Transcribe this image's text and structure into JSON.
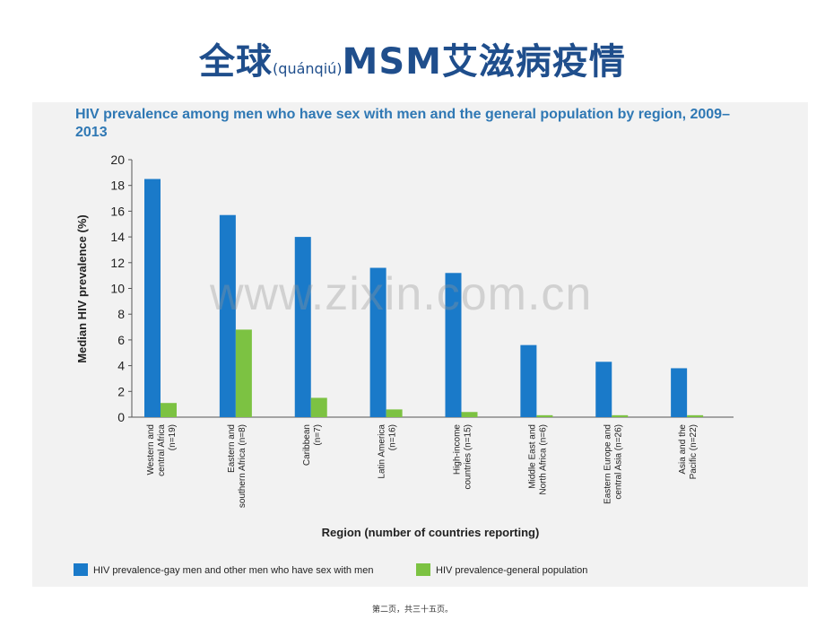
{
  "slide": {
    "title_main": "全球",
    "title_small": "(quánqiú)",
    "title_rest": "MSM艾滋病疫情",
    "watermark": "www.zixin.com.cn",
    "footer": "第二页，共三十五页。"
  },
  "chart_data": {
    "type": "bar",
    "title": "HIV prevalence among men who have sex with men and the general population by region, 2009–2013",
    "xlabel": "Region (number of countries reporting)",
    "ylabel": "Median HIV prevalence (%)",
    "ylim": [
      0,
      20
    ],
    "yticks": [
      0,
      2,
      4,
      6,
      8,
      10,
      12,
      14,
      16,
      18,
      20
    ],
    "categories": [
      [
        "Western and",
        "central Africa",
        "(n=19)"
      ],
      [
        "Eastern and",
        "southern Africa (n=8)"
      ],
      [
        "Caribbean",
        "(n=7)"
      ],
      [
        "Latin America",
        "(n=16)"
      ],
      [
        "High-income",
        "countries (n=15)"
      ],
      [
        "Middle East and",
        "North Africa (n=6)"
      ],
      [
        "Eastern Europe and",
        "central Asia (n=26)"
      ],
      [
        "Asia and the",
        "Pacific (n=22)"
      ]
    ],
    "series": [
      {
        "name": "HIV prevalence-gay men and other men who have sex with men",
        "color": "#1a7ac9",
        "values": [
          18.5,
          15.7,
          14.0,
          11.6,
          11.2,
          5.6,
          4.3,
          3.8
        ]
      },
      {
        "name": "HIV prevalence-general population",
        "color": "#7cc242",
        "values": [
          1.1,
          6.8,
          1.5,
          0.6,
          0.4,
          0.15,
          0.15,
          0.15
        ]
      }
    ],
    "legend_position": "bottom",
    "grid": false
  }
}
